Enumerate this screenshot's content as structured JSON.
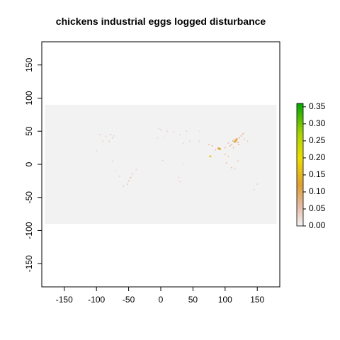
{
  "title": "chickens industrial eggs logged disturbance",
  "chart_data": {
    "type": "heatmap",
    "title": "chickens industrial eggs logged disturbance",
    "xlabel": "",
    "ylabel": "",
    "xlim": [
      -185,
      185
    ],
    "ylim": [
      -185,
      185
    ],
    "raster_extent": {
      "x": [
        -180,
        180
      ],
      "y": [
        -90,
        90
      ]
    },
    "x_ticks": [
      -150,
      -100,
      -50,
      0,
      50,
      100,
      150
    ],
    "x_tick_labels": [
      "-150",
      "-100",
      "-50",
      "0",
      "50",
      "100",
      "150"
    ],
    "y_ticks": [
      -150,
      -100,
      -50,
      0,
      50,
      100,
      150
    ],
    "y_tick_labels": [
      "-150",
      "-100",
      "-50",
      "0",
      "50",
      "100",
      "150"
    ],
    "legend": {
      "placement": "right",
      "min": 0,
      "max": 0.36,
      "ticks": [
        0.0,
        0.05,
        0.1,
        0.15,
        0.2,
        0.25,
        0.3,
        0.35
      ],
      "tick_labels": [
        "0.00",
        "0.05",
        "0.10",
        "0.15",
        "0.20",
        "0.25",
        "0.30",
        "0.35"
      ],
      "color_stops": [
        {
          "value": 0.0,
          "color": "#f2f2f2"
        },
        {
          "value": 0.06,
          "color": "#e6b8a2"
        },
        {
          "value": 0.12,
          "color": "#e0a030"
        },
        {
          "value": 0.2,
          "color": "#eedd00"
        },
        {
          "value": 0.27,
          "color": "#aad400"
        },
        {
          "value": 0.36,
          "color": "#00a600"
        }
      ]
    },
    "background_color": "#f2f2f2",
    "cells": [
      {
        "x": 117,
        "y": 36,
        "value": 0.12
      },
      {
        "x": 115,
        "y": 34,
        "value": 0.11
      },
      {
        "x": 118,
        "y": 38,
        "value": 0.1
      },
      {
        "x": 114,
        "y": 37,
        "value": 0.09
      },
      {
        "x": 120,
        "y": 33,
        "value": 0.07
      },
      {
        "x": 112,
        "y": 35,
        "value": 0.08
      },
      {
        "x": 122,
        "y": 40,
        "value": 0.07
      },
      {
        "x": 125,
        "y": 43,
        "value": 0.06
      },
      {
        "x": 128,
        "y": 46,
        "value": 0.07
      },
      {
        "x": 121,
        "y": 30,
        "value": 0.06
      },
      {
        "x": 110,
        "y": 30,
        "value": 0.06
      },
      {
        "x": 108,
        "y": 28,
        "value": 0.06
      },
      {
        "x": 113,
        "y": 25,
        "value": 0.05
      },
      {
        "x": 105,
        "y": 32,
        "value": 0.05
      },
      {
        "x": 100,
        "y": 25,
        "value": 0.05
      },
      {
        "x": 92,
        "y": 23,
        "value": 0.13
      },
      {
        "x": 90,
        "y": 24,
        "value": 0.12
      },
      {
        "x": 80,
        "y": 28,
        "value": 0.06
      },
      {
        "x": 77,
        "y": 12,
        "value": 0.17
      },
      {
        "x": 75,
        "y": 30,
        "value": 0.05
      },
      {
        "x": 85,
        "y": 22,
        "value": 0.05
      },
      {
        "x": 100,
        "y": 15,
        "value": 0.05
      },
      {
        "x": 105,
        "y": 12,
        "value": 0.05
      },
      {
        "x": 102,
        "y": 2,
        "value": 0.05
      },
      {
        "x": 110,
        "y": -5,
        "value": 0.05
      },
      {
        "x": 115,
        "y": -7,
        "value": 0.04
      },
      {
        "x": 120,
        "y": 5,
        "value": 0.04
      },
      {
        "x": 135,
        "y": 35,
        "value": 0.04
      },
      {
        "x": 130,
        "y": 38,
        "value": 0.04
      },
      {
        "x": 60,
        "y": 35,
        "value": 0.03
      },
      {
        "x": 45,
        "y": 35,
        "value": 0.03
      },
      {
        "x": 35,
        "y": 32,
        "value": 0.03
      },
      {
        "x": 30,
        "y": 45,
        "value": 0.03
      },
      {
        "x": 40,
        "y": 50,
        "value": 0.03
      },
      {
        "x": 10,
        "y": 50,
        "value": 0.03
      },
      {
        "x": 0,
        "y": 52,
        "value": 0.03
      },
      {
        "x": -5,
        "y": 40,
        "value": 0.03
      },
      {
        "x": 20,
        "y": 48,
        "value": 0.03
      },
      {
        "x": 5,
        "y": 40,
        "value": 0.02
      },
      {
        "x": -3,
        "y": 54,
        "value": 0.03
      },
      {
        "x": 3,
        "y": 6,
        "value": 0.03
      },
      {
        "x": 30,
        "y": -26,
        "value": 0.03
      },
      {
        "x": 28,
        "y": -20,
        "value": 0.03
      },
      {
        "x": 35,
        "y": 0,
        "value": 0.02
      },
      {
        "x": 60,
        "y": 50,
        "value": 0.02
      },
      {
        "x": -75,
        "y": 40,
        "value": 0.04
      },
      {
        "x": -80,
        "y": 35,
        "value": 0.04
      },
      {
        "x": -90,
        "y": 35,
        "value": 0.03
      },
      {
        "x": -85,
        "y": 42,
        "value": 0.03
      },
      {
        "x": -95,
        "y": 45,
        "value": 0.03
      },
      {
        "x": -100,
        "y": 20,
        "value": 0.03
      },
      {
        "x": -78,
        "y": 45,
        "value": 0.04
      },
      {
        "x": -73,
        "y": 43,
        "value": 0.03
      },
      {
        "x": -47,
        "y": -20,
        "value": 0.06
      },
      {
        "x": -50,
        "y": -25,
        "value": 0.05
      },
      {
        "x": -44,
        "y": -15,
        "value": 0.04
      },
      {
        "x": -52,
        "y": -30,
        "value": 0.04
      },
      {
        "x": -58,
        "y": -33,
        "value": 0.04
      },
      {
        "x": -64,
        "y": -18,
        "value": 0.03
      },
      {
        "x": -38,
        "y": -8,
        "value": 0.03
      },
      {
        "x": -70,
        "y": -10,
        "value": 0.02
      },
      {
        "x": -75,
        "y": 5,
        "value": 0.03
      },
      {
        "x": 150,
        "y": -30,
        "value": 0.03
      },
      {
        "x": 145,
        "y": -38,
        "value": 0.03
      }
    ]
  }
}
